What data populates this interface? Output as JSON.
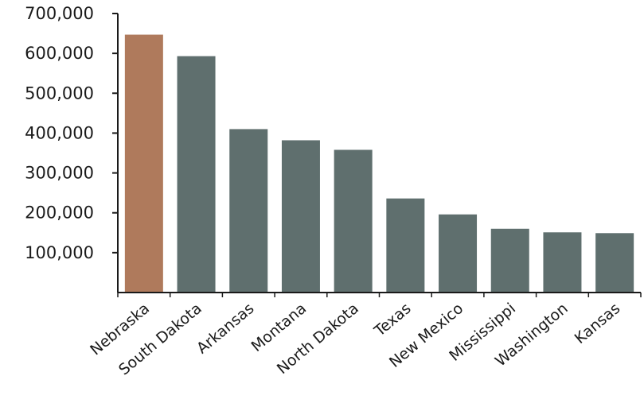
{
  "chart_data": {
    "type": "bar",
    "title": "",
    "xlabel": "",
    "ylabel": "",
    "categories": [
      "Nebraska",
      "South Dakota",
      "Arkansas",
      "Montana",
      "North Dakota",
      "Texas",
      "New Mexico",
      "Mississippi",
      "Washington",
      "Kansas"
    ],
    "values": [
      647000,
      593000,
      410000,
      382000,
      358000,
      236000,
      196000,
      160000,
      151000,
      149000
    ],
    "ylim": [
      0,
      700000
    ],
    "yticks": [
      100000,
      200000,
      300000,
      400000,
      500000,
      600000,
      700000
    ],
    "ytick_labels": [
      "100,000",
      "200,000",
      "300,000",
      "400,000",
      "500,000",
      "600,000",
      "700,000"
    ],
    "grid": false,
    "legend": "none",
    "colors": {
      "highlight": "#AF7A5C",
      "default": "#5F6F6E",
      "axis": "#1a1a1a"
    },
    "highlight_index": 0
  }
}
